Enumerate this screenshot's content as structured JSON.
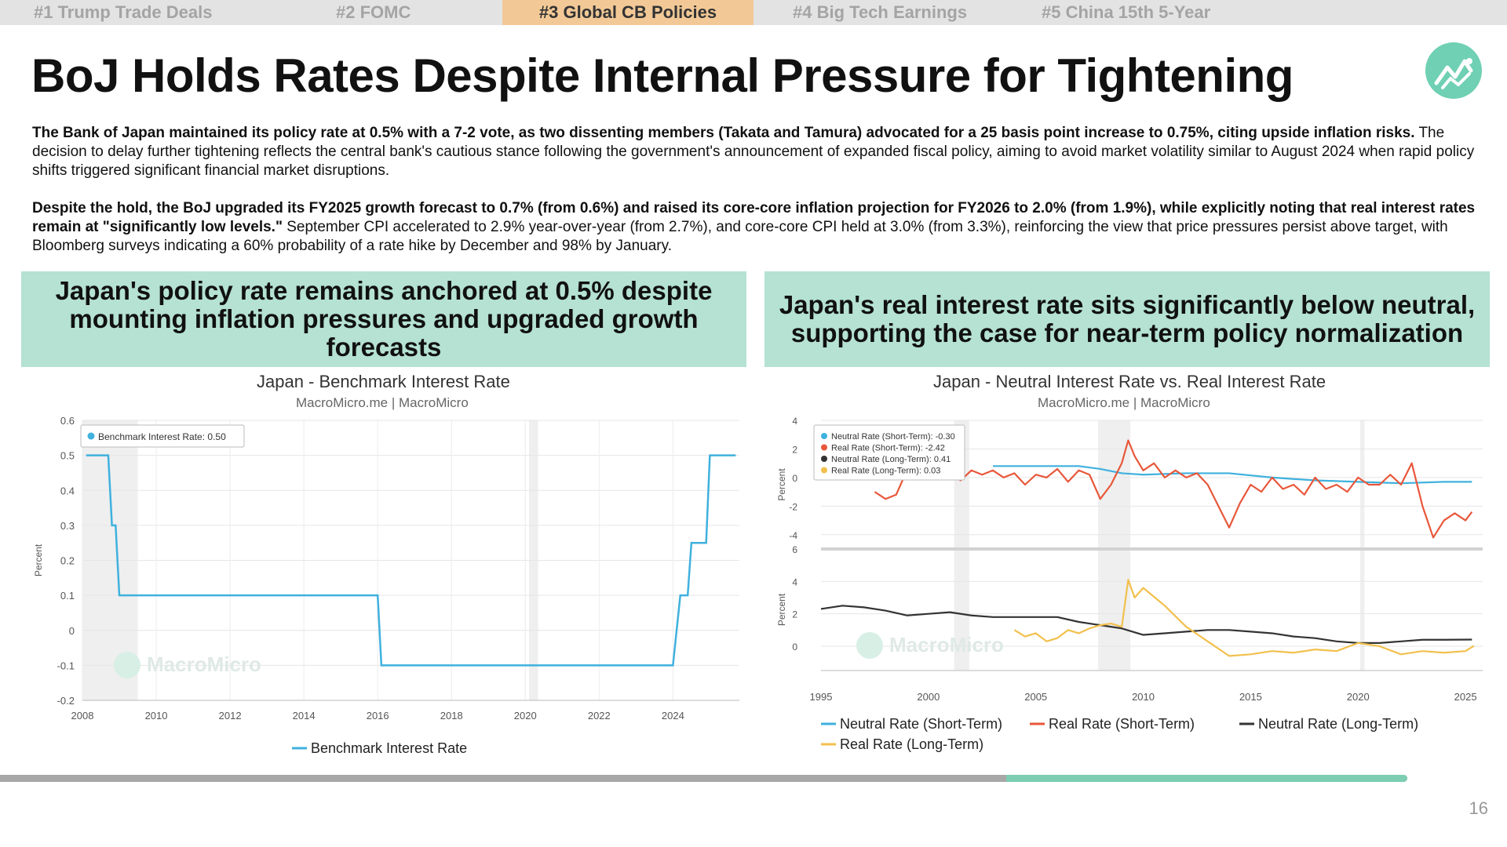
{
  "tabs": [
    {
      "label": "#1 Trump Trade Deals",
      "active": false
    },
    {
      "label": "#2 FOMC",
      "active": false
    },
    {
      "label": "#3 Global CB Policies",
      "active": true
    },
    {
      "label": "#4 Big Tech Earnings",
      "active": false
    },
    {
      "label": "#5 China 15th 5-Year",
      "active": false
    }
  ],
  "title": "BoJ Holds Rates Despite Internal Pressure for Tightening",
  "logo_icon": "line-chart-logo-icon",
  "paragraphs": [
    {
      "bold": "The Bank of Japan maintained its policy rate at 0.5% with a 7-2 vote, as two dissenting members (Takata and Tamura) advocated for a 25 basis point increase to 0.75%, citing upside inflation risks.",
      "text": " The decision to delay further tightening reflects the central bank's cautious stance following the government's announcement of expanded fiscal policy, aiming to avoid market volatility similar to August 2024 when rapid policy shifts triggered significant financial market disruptions."
    },
    {
      "bold": "Despite the hold, the BoJ upgraded its FY2025 growth forecast to 0.7% (from 0.6%) and raised its core-core inflation projection for FY2026 to 2.0% (from 1.9%), while explicitly noting that real interest rates remain at \"significantly low levels.\"",
      "text": " September CPI accelerated to 2.9% year-over-year (from 2.7%), and core-core CPI held at 3.0% (from 3.3%), reinforcing the view that price pressures persist above target, with Bloomberg surveys indicating a 60% probability of a rate hike by December and 98% by January."
    }
  ],
  "panels": [
    {
      "heading": "Japan's policy rate remains anchored at 0.5% despite mounting inflation pressures and upgraded growth forecasts"
    },
    {
      "heading": "Japan's real interest rate sits significantly below neutral, supporting the case for near-term policy normalization"
    }
  ],
  "page_number": "16",
  "progress_fraction": 0.75,
  "chart_data": [
    {
      "type": "line",
      "title": "Japan - Benchmark Interest Rate",
      "subtitle": "MacroMicro.me | MacroMicro",
      "watermark": "MacroMicro",
      "ylabel": "Percent",
      "xlabel": "",
      "xlim": [
        2008.0,
        2025.8
      ],
      "ylim": [
        -0.2,
        0.6
      ],
      "yticks": [
        "0.6",
        "0.5",
        "0.4",
        "0.3",
        "0.2",
        "0.1",
        "0",
        "-0.1",
        "-0.2"
      ],
      "xticks": [
        "2008",
        "2010",
        "2012",
        "2014",
        "2016",
        "2018",
        "2020",
        "2022",
        "2024"
      ],
      "recessions": [
        [
          2008.0,
          2009.5
        ],
        [
          2020.1,
          2020.35
        ]
      ],
      "grid": true,
      "legend_box": "Benchmark Interest Rate: 0.50",
      "legend_position": "top-left",
      "color": "#3fb1de",
      "series": [
        {
          "name": "Benchmark Interest Rate",
          "x": [
            2008.1,
            2008.7,
            2008.8,
            2008.9,
            2009.0,
            2016.0,
            2016.1,
            2024.0,
            2024.2,
            2024.4,
            2024.5,
            2024.9,
            2025.0,
            2025.7
          ],
          "y": [
            0.5,
            0.5,
            0.3,
            0.3,
            0.1,
            0.1,
            -0.1,
            -0.1,
            0.1,
            0.1,
            0.25,
            0.25,
            0.5,
            0.5
          ]
        }
      ]
    },
    {
      "type": "line",
      "title": "Japan - Neutral Interest Rate vs. Real Interest Rate",
      "subtitle": "MacroMicro.me | MacroMicro",
      "watermark": "MacroMicro",
      "xlim": [
        1995,
        2025.8
      ],
      "xticks": [
        "1995",
        "2000",
        "2005",
        "2010",
        "2015",
        "2020",
        "2025"
      ],
      "recessions": [
        [
          2001.2,
          2001.9
        ],
        [
          2007.9,
          2009.4
        ],
        [
          2020.1,
          2020.3
        ]
      ],
      "grid": true,
      "legend_box": [
        "Neutral Rate (Short-Term): -0.30",
        "Real Rate (Short-Term): -2.42",
        "Neutral Rate (Long-Term): 0.41",
        "Real Rate (Long-Term): 0.03"
      ],
      "legend_position": "top-left",
      "legend_bottom": [
        "Neutral Rate (Short-Term)",
        "Real Rate (Short-Term)",
        "Neutral Rate (Long-Term)",
        "Real Rate (Long-Term)"
      ],
      "panels": [
        {
          "ylabel": "Percent",
          "ylim": [
            -5,
            4
          ],
          "yticks": [
            "4",
            "2",
            "0",
            "-2",
            "-4"
          ],
          "series": [
            {
              "name": "Neutral Rate (Short-Term)",
              "color": "#3fb1de",
              "x": [
                2003,
                2005,
                2007,
                2008,
                2009,
                2010,
                2012,
                2014,
                2016,
                2018,
                2020,
                2022,
                2024,
                2025.3
              ],
              "y": [
                0.8,
                0.8,
                0.8,
                0.6,
                0.3,
                0.2,
                0.3,
                0.3,
                0.0,
                -0.2,
                -0.3,
                -0.4,
                -0.3,
                -0.3
              ]
            },
            {
              "name": "Real Rate (Short-Term)",
              "color": "#e8573b",
              "x": [
                1997.5,
                1998.0,
                1998.5,
                1999.0,
                1999.5,
                2000.0,
                2000.5,
                2001.0,
                2001.5,
                2002.0,
                2002.5,
                2003.0,
                2003.5,
                2004.0,
                2004.5,
                2005.0,
                2005.5,
                2006.0,
                2006.5,
                2007.0,
                2007.5,
                2008.0,
                2008.5,
                2009.0,
                2009.3,
                2009.6,
                2010.0,
                2010.5,
                2011.0,
                2011.5,
                2012.0,
                2012.5,
                2013.0,
                2013.5,
                2014.0,
                2014.5,
                2015.0,
                2015.5,
                2016.0,
                2016.5,
                2017.0,
                2017.5,
                2018.0,
                2018.5,
                2019.0,
                2019.5,
                2020.0,
                2020.5,
                2021.0,
                2021.5,
                2022.0,
                2022.5,
                2023.0,
                2023.5,
                2024.0,
                2024.5,
                2025.0,
                2025.3
              ],
              "y": [
                -1.0,
                -1.5,
                -1.2,
                0.5,
                0.2,
                0.5,
                0.0,
                0.3,
                -0.2,
                0.5,
                0.2,
                0.5,
                0.0,
                0.3,
                -0.5,
                0.2,
                0.0,
                0.6,
                -0.3,
                0.5,
                0.2,
                -1.5,
                -0.5,
                1.0,
                2.6,
                1.5,
                0.5,
                1.0,
                0.0,
                0.5,
                0.0,
                0.3,
                -0.5,
                -2.0,
                -3.5,
                -1.8,
                -0.5,
                -1.0,
                0.0,
                -0.8,
                -0.5,
                -1.2,
                0.0,
                -0.8,
                -0.5,
                -1.0,
                0.0,
                -0.5,
                -0.5,
                0.2,
                -0.5,
                1.0,
                -2.0,
                -4.2,
                -3.0,
                -2.5,
                -3.0,
                -2.4
              ]
            }
          ]
        },
        {
          "ylabel": "Percent",
          "ylim": [
            -1.5,
            6
          ],
          "yticks": [
            "6",
            "4",
            "2",
            "0"
          ],
          "series": [
            {
              "name": "Neutral Rate (Long-Term)",
              "color": "#333333",
              "x": [
                1995,
                1996,
                1997,
                1998,
                1999,
                2000,
                2001,
                2002,
                2003,
                2004,
                2005,
                2006,
                2007,
                2008,
                2009,
                2010,
                2011,
                2012,
                2013,
                2014,
                2015,
                2016,
                2017,
                2018,
                2019,
                2020,
                2021,
                2022,
                2023,
                2024,
                2025.3
              ],
              "y": [
                2.3,
                2.5,
                2.4,
                2.2,
                1.9,
                2.0,
                2.1,
                1.9,
                1.8,
                1.8,
                1.8,
                1.8,
                1.5,
                1.3,
                1.1,
                0.7,
                0.8,
                0.9,
                1.0,
                1.0,
                0.9,
                0.8,
                0.6,
                0.5,
                0.3,
                0.2,
                0.2,
                0.3,
                0.4,
                0.4,
                0.41
              ]
            },
            {
              "name": "Real Rate (Long-Term)",
              "color": "#f2c04d",
              "x": [
                2004,
                2004.5,
                2005,
                2005.5,
                2006,
                2006.5,
                2007,
                2007.5,
                2008,
                2008.5,
                2009,
                2009.3,
                2009.6,
                2010,
                2011,
                2012,
                2013,
                2014,
                2015,
                2016,
                2017,
                2018,
                2019,
                2020,
                2021,
                2022,
                2023,
                2024,
                2025,
                2025.4
              ],
              "y": [
                1.0,
                0.6,
                0.8,
                0.3,
                0.5,
                1.0,
                0.8,
                1.1,
                1.3,
                1.4,
                1.2,
                4.1,
                3.0,
                3.6,
                2.5,
                1.2,
                0.3,
                -0.6,
                -0.5,
                -0.3,
                -0.4,
                -0.2,
                -0.3,
                0.2,
                0.0,
                -0.5,
                -0.3,
                -0.4,
                -0.3,
                0.03
              ]
            }
          ]
        }
      ]
    }
  ]
}
